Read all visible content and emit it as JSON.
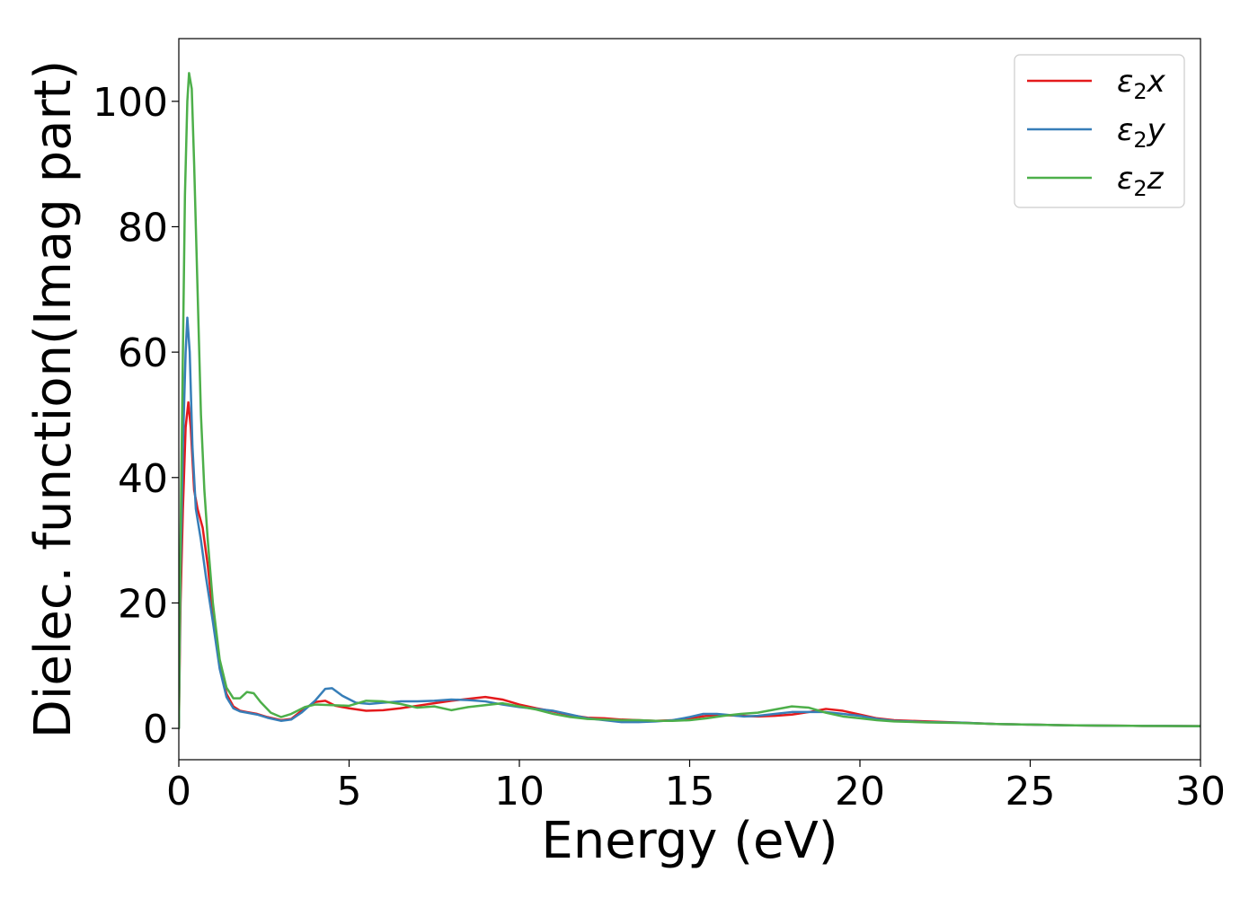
{
  "chart_data": {
    "type": "line",
    "xlabel": "Energy (eV)",
    "ylabel": "Dielec. function(Imag part)",
    "xlim": [
      0,
      30
    ],
    "ylim": [
      -5,
      110
    ],
    "xticks": [
      0,
      5,
      10,
      15,
      20,
      25,
      30
    ],
    "yticks": [
      0,
      20,
      40,
      60,
      80,
      100
    ],
    "grid": false,
    "legend_position": "top-right",
    "series": [
      {
        "name": "ε2x",
        "legend": {
          "base": "ε",
          "sub": "2",
          "var": "x"
        },
        "color": "#e41a1c",
        "x": [
          0,
          0.05,
          0.12,
          0.2,
          0.28,
          0.35,
          0.45,
          0.55,
          0.7,
          0.85,
          1.0,
          1.2,
          1.4,
          1.6,
          1.8,
          2.0,
          2.3,
          2.6,
          3.0,
          3.3,
          3.6,
          4.0,
          4.3,
          4.6,
          5.0,
          5.5,
          6.0,
          6.5,
          7.0,
          7.5,
          8.0,
          8.5,
          9.0,
          9.5,
          10.0,
          10.5,
          11.0,
          11.5,
          12.0,
          12.5,
          13.0,
          13.5,
          14.0,
          14.5,
          15.0,
          15.5,
          16.0,
          16.5,
          17.0,
          17.5,
          18.0,
          18.5,
          19.0,
          19.5,
          20.0,
          20.5,
          21.0,
          22.0,
          23.0,
          24.0,
          25.0,
          26.0,
          27.0,
          28.0,
          29.0,
          30.0
        ],
        "y": [
          0,
          20,
          35,
          48,
          52,
          48,
          38,
          35,
          32,
          26,
          18,
          10,
          5.5,
          3.5,
          2.8,
          2.6,
          2.3,
          1.8,
          1.3,
          1.5,
          2.8,
          4.2,
          4.4,
          3.6,
          3.2,
          2.8,
          2.9,
          3.2,
          3.6,
          4.0,
          4.4,
          4.7,
          5.0,
          4.6,
          3.8,
          3.2,
          2.7,
          2.1,
          1.7,
          1.6,
          1.4,
          1.3,
          1.2,
          1.3,
          1.6,
          2.0,
          2.1,
          2.0,
          1.9,
          2.0,
          2.2,
          2.6,
          3.1,
          2.8,
          2.2,
          1.6,
          1.3,
          1.1,
          0.9,
          0.7,
          0.6,
          0.5,
          0.45,
          0.4,
          0.38,
          0.35
        ]
      },
      {
        "name": "ε2y",
        "legend": {
          "base": "ε",
          "sub": "2",
          "var": "y"
        },
        "color": "#377eb8",
        "x": [
          0,
          0.05,
          0.12,
          0.2,
          0.25,
          0.32,
          0.4,
          0.5,
          0.65,
          0.8,
          1.0,
          1.2,
          1.4,
          1.6,
          1.8,
          2.0,
          2.3,
          2.6,
          3.0,
          3.3,
          3.6,
          4.0,
          4.3,
          4.5,
          4.8,
          5.2,
          5.6,
          6.0,
          6.5,
          7.0,
          7.5,
          8.0,
          8.5,
          9.0,
          9.5,
          10.0,
          10.5,
          11.0,
          11.5,
          12.0,
          12.5,
          13.0,
          13.5,
          14.0,
          14.5,
          15.0,
          15.4,
          15.8,
          16.2,
          16.6,
          17.0,
          17.5,
          18.0,
          18.5,
          19.0,
          19.5,
          20.0,
          20.5,
          21.0,
          22.0,
          23.0,
          24.0,
          25.0,
          26.0,
          27.0,
          28.0,
          29.0,
          30.0
        ],
        "y": [
          0,
          25,
          45,
          60,
          65.5,
          60,
          45,
          35,
          30,
          24,
          17,
          9.5,
          5.0,
          3.2,
          2.7,
          2.5,
          2.2,
          1.7,
          1.2,
          1.4,
          2.5,
          4.4,
          6.3,
          6.4,
          5.2,
          4.1,
          3.9,
          4.1,
          4.3,
          4.3,
          4.4,
          4.6,
          4.5,
          4.3,
          3.8,
          3.4,
          3.1,
          2.8,
          2.2,
          1.6,
          1.3,
          1.0,
          1.0,
          1.1,
          1.3,
          1.8,
          2.3,
          2.3,
          2.1,
          1.9,
          2.0,
          2.3,
          2.6,
          2.6,
          2.6,
          2.3,
          2.0,
          1.5,
          1.2,
          1.0,
          0.9,
          0.7,
          0.6,
          0.5,
          0.45,
          0.4,
          0.38,
          0.35
        ]
      },
      {
        "name": "ε2z",
        "legend": {
          "base": "ε",
          "sub": "2",
          "var": "z"
        },
        "color": "#4daf4a",
        "x": [
          0,
          0.05,
          0.12,
          0.18,
          0.25,
          0.3,
          0.38,
          0.45,
          0.55,
          0.65,
          0.75,
          0.85,
          1.0,
          1.2,
          1.4,
          1.6,
          1.8,
          2.0,
          2.2,
          2.4,
          2.7,
          3.0,
          3.3,
          3.7,
          4.0,
          4.5,
          5.0,
          5.5,
          6.0,
          6.5,
          7.0,
          7.5,
          8.0,
          8.5,
          9.0,
          9.5,
          10.0,
          10.5,
          11.0,
          11.5,
          12.0,
          12.5,
          13.0,
          13.5,
          14.0,
          14.5,
          15.0,
          15.5,
          16.0,
          16.5,
          17.0,
          17.5,
          18.0,
          18.5,
          19.0,
          19.5,
          20.0,
          20.5,
          21.0,
          22.0,
          23.0,
          24.0,
          25.0,
          26.0,
          27.0,
          28.0,
          29.0,
          30.0
        ],
        "y": [
          0,
          30,
          60,
          85,
          100,
          104.5,
          102,
          90,
          70,
          50,
          38,
          30,
          20,
          11,
          6.5,
          4.8,
          4.8,
          5.8,
          5.6,
          4.2,
          2.5,
          1.8,
          2.3,
          3.4,
          3.8,
          3.7,
          3.6,
          4.4,
          4.3,
          3.9,
          3.3,
          3.5,
          2.9,
          3.4,
          3.7,
          4.0,
          3.5,
          3.0,
          2.3,
          1.8,
          1.5,
          1.4,
          1.3,
          1.3,
          1.2,
          1.2,
          1.3,
          1.6,
          2.0,
          2.3,
          2.5,
          3.0,
          3.5,
          3.3,
          2.5,
          1.9,
          1.6,
          1.3,
          1.1,
          0.95,
          0.85,
          0.7,
          0.6,
          0.5,
          0.45,
          0.4,
          0.37,
          0.35
        ]
      }
    ]
  }
}
